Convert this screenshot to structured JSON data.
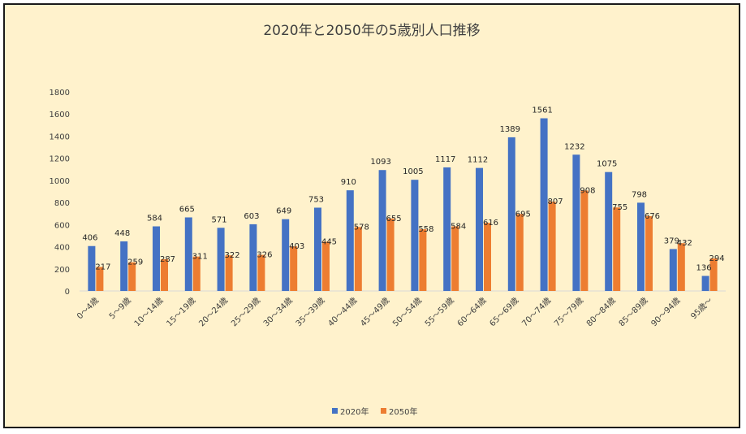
{
  "chart_data": {
    "type": "bar",
    "title": "2020年と2050年の5歳別人口推移",
    "xlabel": "",
    "ylabel": "",
    "ylim": [
      0,
      1800
    ],
    "yticks": [
      0,
      200,
      400,
      600,
      800,
      1000,
      1200,
      1400,
      1600,
      1800
    ],
    "grid": false,
    "legend_position": "bottom",
    "categories": [
      "0～4歳",
      "5～9歳",
      "10～14歳",
      "15～19歳",
      "20～24歳",
      "25～29歳",
      "30～34歳",
      "35～39歳",
      "40～44歳",
      "45～49歳",
      "50～54歳",
      "55～59歳",
      "60～64歳",
      "65～69歳",
      "70～74歳",
      "75～79歳",
      "80～84歳",
      "85～89歳",
      "90～94歳",
      "95歳～"
    ],
    "series": [
      {
        "name": "2020年",
        "color": "#4472c4",
        "values": [
          406,
          448,
          584,
          665,
          571,
          603,
          649,
          753,
          910,
          1093,
          1005,
          1117,
          1112,
          1389,
          1561,
          1232,
          1075,
          798,
          379,
          136
        ]
      },
      {
        "name": "2050年",
        "color": "#ed7d31",
        "values": [
          217,
          259,
          287,
          311,
          322,
          326,
          403,
          445,
          578,
          655,
          558,
          584,
          616,
          695,
          807,
          908,
          755,
          676,
          432,
          294
        ]
      }
    ]
  }
}
